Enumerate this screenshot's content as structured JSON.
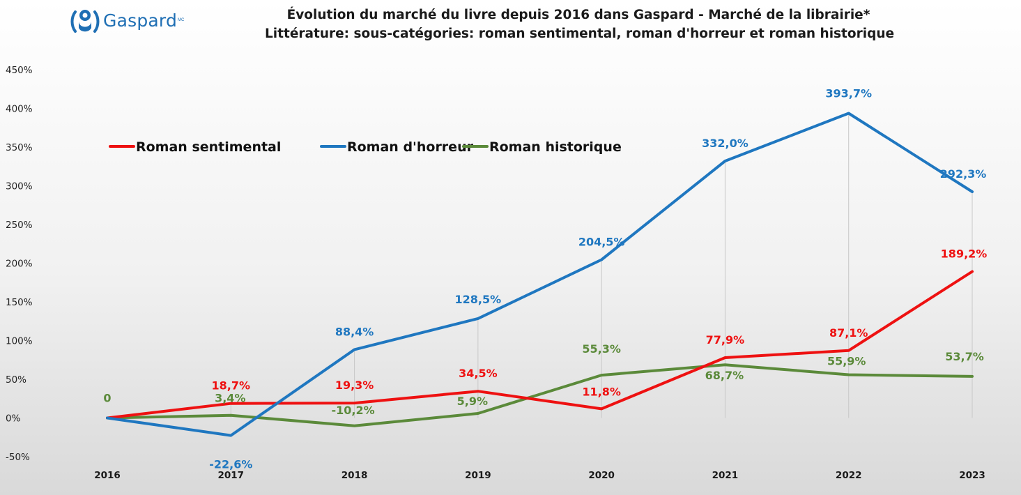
{
  "logo": {
    "text": "Gaspard",
    "superscript": "MC"
  },
  "chart_data": {
    "type": "line",
    "title": "Évolution du marché du livre depuis 2016 dans Gaspard - Marché de la librairie*",
    "subtitle": "Littérature: sous-catégories: roman sentimental, roman d'horreur et roman historique",
    "xlabel": "",
    "ylabel": "",
    "categories": [
      "2016",
      "2017",
      "2018",
      "2019",
      "2020",
      "2021",
      "2022",
      "2023"
    ],
    "y_ticks": [
      "-50%",
      "0%",
      "50%",
      "100%",
      "150%",
      "200%",
      "250%",
      "300%",
      "350%",
      "400%",
      "450%"
    ],
    "ylim": [
      -50,
      450
    ],
    "grid": "vertical lines at each year",
    "legend_position": "top-left",
    "series": [
      {
        "name": "Roman sentimental",
        "color": "#ee1111",
        "values": [
          0,
          18.7,
          19.3,
          34.5,
          11.8,
          77.9,
          87.1,
          189.2
        ],
        "labels": [
          "",
          "18,7%",
          "19,3%",
          "34,5%",
          "11,8%",
          "77,9%",
          "87,1%",
          "189,2%"
        ]
      },
      {
        "name": "Roman d'horreur",
        "color": "#1f77c0",
        "values": [
          0,
          -22.6,
          88.4,
          128.5,
          204.5,
          332.0,
          393.7,
          292.3
        ],
        "labels": [
          "",
          "-22,6%",
          "88,4%",
          "128,5%",
          "204,5%",
          "332,0%",
          "393,7%",
          "292,3%"
        ]
      },
      {
        "name": "Roman historique",
        "color": "#5b8a3a",
        "values": [
          0,
          3.4,
          -10.2,
          5.9,
          55.3,
          68.7,
          55.9,
          53.7
        ],
        "labels": [
          "0",
          "3,4%",
          "-10,2%",
          "5,9%",
          "55,3%",
          "68,7%",
          "55,9%",
          "53,7%"
        ]
      }
    ]
  }
}
